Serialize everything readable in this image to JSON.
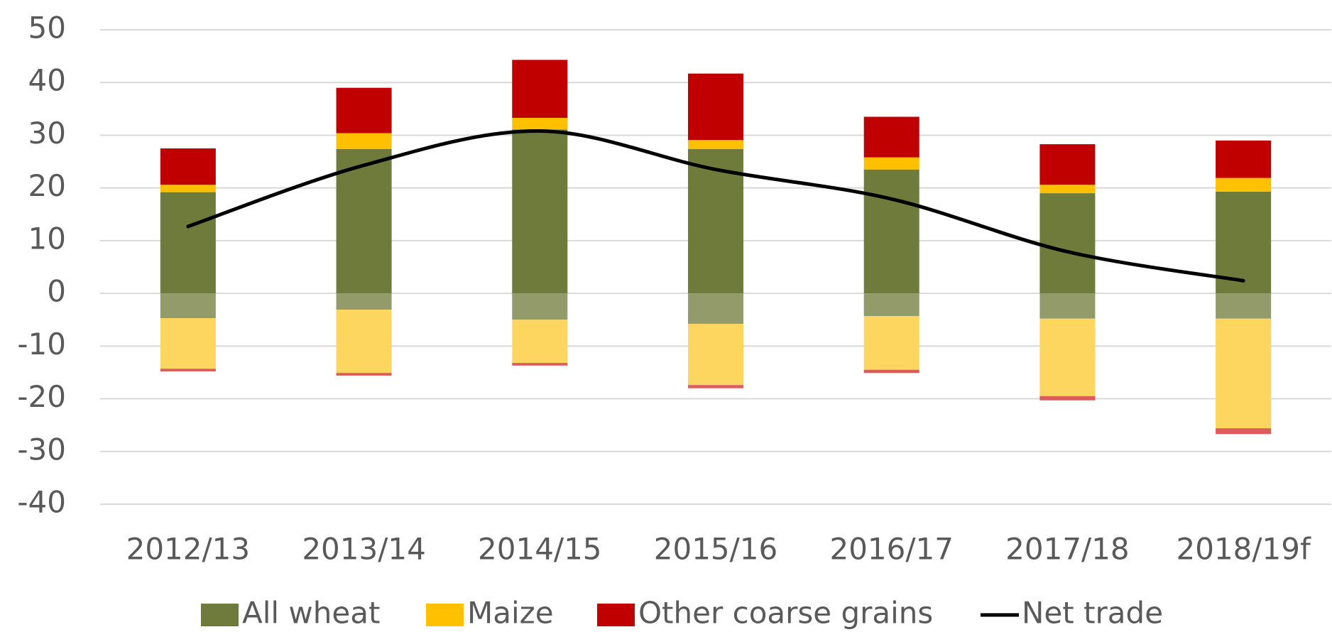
{
  "chart_data": {
    "type": "bar",
    "categories": [
      "2012/13",
      "2013/14",
      "2014/15",
      "2015/16",
      "2016/17",
      "2017/18",
      "2018/19f"
    ],
    "series": [
      {
        "name": "All wheat",
        "color": "#6e7b3a",
        "values": [
          19.2,
          27.4,
          31.1,
          27.4,
          23.5,
          19.0,
          19.3
        ],
        "negative_color": "#949b6b",
        "negative_values": [
          -4.7,
          -3.1,
          -5.0,
          -5.8,
          -4.3,
          -4.8,
          -4.8
        ]
      },
      {
        "name": "Maize",
        "color": "#ffc000",
        "values": [
          1.4,
          3.0,
          2.2,
          1.7,
          2.3,
          1.6,
          2.6
        ],
        "negative_color": "#fdd65f",
        "negative_values": [
          -9.6,
          -12.0,
          -8.2,
          -11.6,
          -10.2,
          -14.7,
          -20.8
        ]
      },
      {
        "name": "Other coarse grains",
        "color": "#c00000",
        "values": [
          6.9,
          8.6,
          11.0,
          12.6,
          7.7,
          7.7,
          7.1
        ],
        "negative_color": "#dc5b5b",
        "negative_values": [
          -0.5,
          -0.5,
          -0.5,
          -0.6,
          -0.6,
          -0.8,
          -1.1
        ]
      },
      {
        "name": "Net trade",
        "type": "line",
        "color": "#000000",
        "values": [
          12.7,
          24.3,
          30.8,
          23.5,
          17.9,
          7.9,
          2.4
        ]
      }
    ],
    "ylim": [
      -40,
      50
    ],
    "yticks": [
      -40,
      -30,
      -20,
      -10,
      0,
      10,
      20,
      30,
      40,
      50
    ],
    "grid": true,
    "legend": "bottom"
  }
}
